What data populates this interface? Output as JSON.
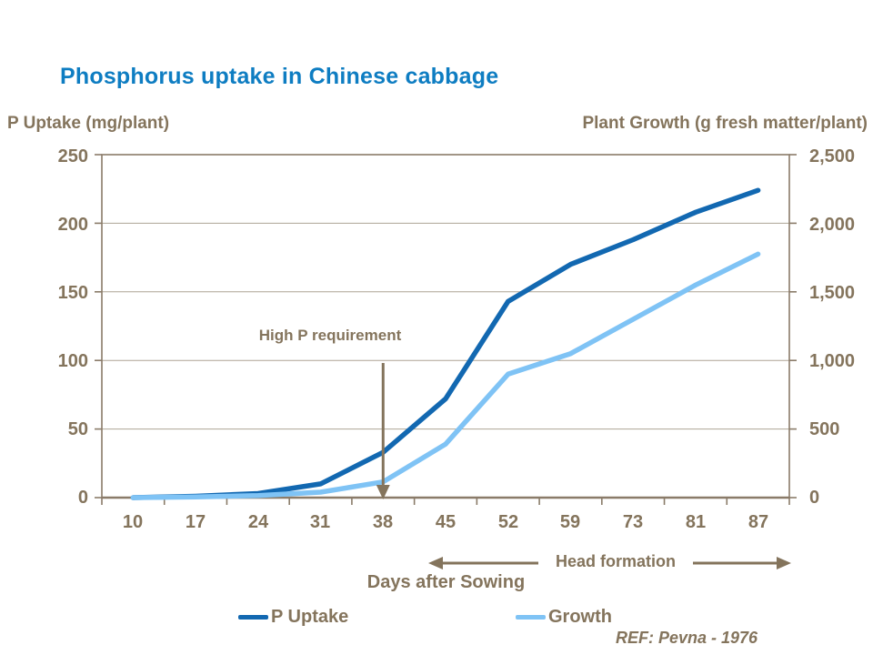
{
  "title": "Phosphorus uptake in Chinese cabbage",
  "colors": {
    "title_blue": "#0E7DC2",
    "p_uptake_blue": "#1268B1",
    "growth_light_blue": "#7FC3F5",
    "axis_text_brown": "#84745C",
    "plot_border_brown": "#8A7B69",
    "gridline_brown": "#ADA494",
    "annotation_arrow_brown": "#84745C"
  },
  "annotations": {
    "high_p_requirement": "High P requirement",
    "head_formation": "Head formation",
    "reference": "REF: Pevna - 1976"
  },
  "legend": {
    "p_uptake_label": "P Uptake",
    "growth_label": "Growth"
  },
  "chart_data": {
    "type": "line",
    "title": "Phosphorus uptake in Chinese cabbage",
    "categories": [
      "10",
      "17",
      "24",
      "31",
      "38",
      "45",
      "52",
      "59",
      "73",
      "81",
      "87"
    ],
    "x_axis_label": "Days after Sowing",
    "grid": true,
    "legend_position": "bottom",
    "left_axis": {
      "label": "P Uptake (mg/plant)",
      "range": [
        0,
        250
      ],
      "tick_interval": 50,
      "ticks": [
        "250",
        "200",
        "150",
        "100",
        "50",
        "0"
      ]
    },
    "right_axis": {
      "label": "Plant Growth (g fresh matter/plant)",
      "range": [
        0,
        2500
      ],
      "tick_interval": 500,
      "ticks": [
        "2,500",
        "2,000",
        "1,500",
        "1,000",
        "500",
        "0"
      ]
    },
    "series": [
      {
        "name": "P Uptake",
        "axis": "left",
        "color": "#1268B1",
        "values": [
          0,
          1,
          3,
          10,
          33,
          72,
          143,
          170,
          188,
          208,
          224
        ]
      },
      {
        "name": "Growth",
        "axis": "right",
        "color": "#7FC3F5",
        "values": [
          0,
          5,
          15,
          40,
          115,
          390,
          900,
          1050,
          1300,
          1550,
          1775
        ]
      }
    ],
    "annotations": [
      {
        "text": "High P requirement",
        "type": "down-arrow",
        "x_category": "38"
      },
      {
        "text": "Head formation",
        "type": "double-arrow",
        "x_span": [
          "45",
          "87"
        ]
      }
    ]
  }
}
